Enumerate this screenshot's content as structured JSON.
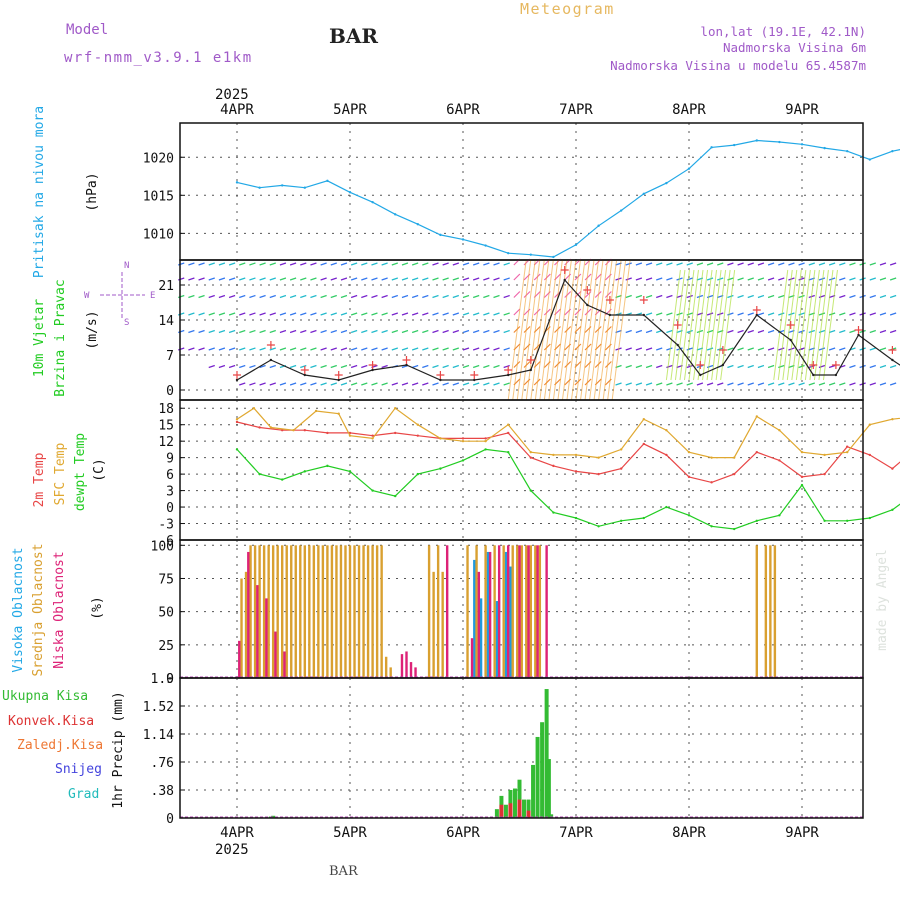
{
  "header": {
    "model_label": "Model",
    "model_name": "wrf-nmm_v3.9.1 e1km",
    "station": "BAR",
    "meteogram": "Meteogram",
    "lonlat": "lon,lat (19.1E, 42.1N)",
    "elevation": "Nadmorska Visina 6m",
    "model_elevation": "Nadmorska Visina u modelu 65.4587m"
  },
  "footer": {
    "station": "BAR",
    "credit": "made by Angel"
  },
  "time_axis": {
    "year": "2025",
    "days": [
      "4APR",
      "5APR",
      "6APR",
      "7APR",
      "8APR",
      "9APR"
    ]
  },
  "wind_legend": {
    "n": "N",
    "s": "S",
    "e": "E",
    "w": "W"
  },
  "colors": {
    "pressure": "#22a8e6",
    "temp2m": "#e84646",
    "sfc": "#e0a830",
    "dewpt": "#22cc22",
    "wind_speed": "#222222",
    "gust_marker": "#e84646",
    "high_cloud": "#2299dd",
    "mid_cloud": "#d9a030",
    "low_cloud": "#dd2277",
    "total_precip": "#33bb33",
    "conv_precip": "#dd3333",
    "frz_precip": "#ee7733",
    "snow": "#4444dd",
    "hail": "#22bbbb",
    "grid": "#555555"
  },
  "chart_data": [
    {
      "type": "line",
      "ylabel": [
        "Pritisak na nivou mora",
        "(hPa)"
      ],
      "yticks": [
        1010,
        1015,
        1020
      ],
      "ylim": [
        1006.5,
        1024.5
      ],
      "series": [
        {
          "name": "Pritisak na nivou mora",
          "x": [
            0,
            0.2,
            0.4,
            0.6,
            0.8,
            1.0,
            1.2,
            1.4,
            1.6,
            1.8,
            2.0,
            2.2,
            2.4,
            2.6,
            2.8,
            3.0,
            3.2,
            3.4,
            3.6,
            3.8,
            4.0,
            4.2,
            4.4,
            4.6,
            4.8,
            5.0,
            5.2,
            5.4,
            5.6,
            5.8,
            5.9,
            6.0
          ],
          "values": [
            1016.7,
            1016.0,
            1016.3,
            1016.0,
            1016.9,
            1015.4,
            1014.1,
            1012.5,
            1011.2,
            1009.8,
            1009.2,
            1008.4,
            1007.4,
            1007.2,
            1006.9,
            1008.5,
            1011.0,
            1013.0,
            1015.2,
            1016.6,
            1018.5,
            1021.3,
            1021.6,
            1022.2,
            1022.0,
            1021.7,
            1021.2,
            1020.8,
            1019.7,
            1020.8,
            1021.1,
            1021.0
          ]
        }
      ]
    },
    {
      "type": "line",
      "ylabel": [
        "10m Vjetar",
        "Brzina i Pravac",
        "(m/s)"
      ],
      "yticks": [
        0,
        7,
        14,
        21
      ],
      "ylim": [
        -2,
        26
      ],
      "series": [
        {
          "name": "Brzina",
          "x": [
            0,
            0.3,
            0.6,
            0.9,
            1.2,
            1.5,
            1.8,
            2.1,
            2.4,
            2.6,
            2.9,
            3.1,
            3.3,
            3.6,
            3.9,
            4.1,
            4.3,
            4.6,
            4.9,
            5.1,
            5.3,
            5.5,
            5.8,
            6.0
          ],
          "values": [
            2,
            6,
            3,
            2,
            4,
            5,
            2,
            2,
            3,
            4,
            22,
            17,
            15,
            15,
            9,
            3,
            5,
            15,
            10,
            3,
            3,
            11,
            6,
            3
          ],
          "gusts": [
            3,
            9,
            4,
            3,
            5,
            6,
            3,
            3,
            4,
            6,
            24,
            20,
            18,
            18,
            13,
            5,
            8,
            16,
            13,
            5,
            5,
            12,
            8,
            5
          ]
        }
      ]
    },
    {
      "type": "line",
      "ylabel": [
        "2m Temp",
        "SFC Temp",
        "dewpt Temp",
        "(C)"
      ],
      "yticks": [
        -6,
        -3,
        0,
        3,
        6,
        9,
        12,
        15,
        18
      ],
      "ylim": [
        -6,
        19.5
      ],
      "series": [
        {
          "name": "2m Temp",
          "x": [
            0,
            0.2,
            0.4,
            0.6,
            0.8,
            1.0,
            1.2,
            1.4,
            1.6,
            1.8,
            2.0,
            2.2,
            2.4,
            2.6,
            2.8,
            3.0,
            3.2,
            3.4,
            3.6,
            3.8,
            4.0,
            4.2,
            4.4,
            4.6,
            4.8,
            5.0,
            5.2,
            5.4,
            5.6,
            5.8,
            6.0
          ],
          "values": [
            15.5,
            14.5,
            14.0,
            14.0,
            13.5,
            13.5,
            13.0,
            13.5,
            13.0,
            12.5,
            12.5,
            12.5,
            13.5,
            9.0,
            7.5,
            6.5,
            6.0,
            7.0,
            11.5,
            9.5,
            5.5,
            4.5,
            6.0,
            10.0,
            8.5,
            5.5,
            6.0,
            11.0,
            9.5,
            7.0,
            10.5
          ]
        },
        {
          "name": "SFC Temp",
          "x": [
            0,
            0.15,
            0.3,
            0.5,
            0.7,
            0.9,
            1.0,
            1.2,
            1.4,
            1.6,
            1.8,
            2.0,
            2.2,
            2.4,
            2.6,
            2.8,
            3.0,
            3.2,
            3.4,
            3.6,
            3.8,
            4.0,
            4.2,
            4.4,
            4.6,
            4.8,
            5.0,
            5.2,
            5.4,
            5.6,
            5.8,
            6.0
          ],
          "values": [
            16,
            18,
            14.5,
            14,
            17.5,
            17,
            13,
            12.5,
            18,
            15,
            12.5,
            12,
            12,
            15,
            10,
            9.5,
            9.5,
            9,
            10.5,
            16,
            14,
            10,
            9,
            9,
            16.5,
            14,
            10,
            9.5,
            10,
            15,
            16,
            16.5
          ]
        },
        {
          "name": "dewpt Temp",
          "x": [
            0,
            0.2,
            0.4,
            0.6,
            0.8,
            1.0,
            1.2,
            1.4,
            1.6,
            1.8,
            2.0,
            2.2,
            2.4,
            2.6,
            2.8,
            3.0,
            3.2,
            3.4,
            3.6,
            3.8,
            4.0,
            4.2,
            4.4,
            4.6,
            4.8,
            5.0,
            5.2,
            5.4,
            5.6,
            5.8,
            6.0
          ],
          "values": [
            10.5,
            6.0,
            5.0,
            6.5,
            7.5,
            6.5,
            3.0,
            2.0,
            6.0,
            7.0,
            8.5,
            10.5,
            10.0,
            3.0,
            -1.0,
            -2.0,
            -3.5,
            -2.5,
            -2.0,
            0.0,
            -1.5,
            -3.5,
            -4.0,
            -2.5,
            -1.5,
            4.0,
            -2.5,
            -2.5,
            -2.0,
            -0.5,
            2.5
          ]
        }
      ]
    },
    {
      "type": "bar",
      "ylabel": [
        "Visoka Oblacnost",
        "Srednja Oblacnost",
        "Niska Oblacnost",
        "(%)"
      ],
      "yticks": [
        0,
        25,
        50,
        75,
        100
      ],
      "ylim": [
        0,
        104
      ],
      "series": [
        {
          "name": "Visoka Oblacnost",
          "x": [
            2.1,
            2.16,
            2.22,
            2.3,
            2.38,
            2.42
          ],
          "values": [
            89,
            60,
            95,
            58,
            95,
            84
          ]
        },
        {
          "name": "Srednja Oblacnost",
          "x": [
            0.04,
            0.08,
            0.12,
            0.16,
            0.2,
            0.24,
            0.28,
            0.32,
            0.36,
            0.4,
            0.44,
            0.48,
            0.52,
            0.56,
            0.6,
            0.64,
            0.68,
            0.72,
            0.76,
            0.8,
            0.84,
            0.88,
            0.92,
            0.96,
            1.0,
            1.04,
            1.08,
            1.12,
            1.16,
            1.2,
            1.24,
            1.28,
            1.32,
            1.36,
            1.7,
            1.74,
            1.78,
            1.82,
            2.04,
            2.12,
            2.2,
            2.28,
            2.36,
            2.44,
            2.48,
            2.52,
            2.56,
            2.6,
            2.64,
            2.68,
            4.6,
            4.68,
            4.72,
            4.76
          ],
          "values": [
            75,
            80,
            100,
            100,
            100,
            100,
            100,
            100,
            100,
            100,
            100,
            100,
            100,
            100,
            100,
            100,
            100,
            100,
            100,
            100,
            100,
            100,
            100,
            100,
            100,
            100,
            100,
            100,
            100,
            100,
            100,
            100,
            16,
            8,
            100,
            80,
            100,
            80,
            100,
            100,
            100,
            100,
            100,
            100,
            100,
            100,
            100,
            100,
            100,
            100,
            100,
            100,
            100,
            100
          ]
        },
        {
          "name": "Niska Oblacnost",
          "x": [
            0.02,
            0.1,
            0.18,
            0.26,
            0.34,
            0.42,
            1.46,
            1.5,
            1.54,
            1.58,
            1.86,
            2.08,
            2.14,
            2.24,
            2.32,
            2.4,
            2.5,
            2.58,
            2.66,
            2.74
          ],
          "values": [
            28,
            95,
            70,
            60,
            35,
            20,
            18,
            20,
            12,
            8,
            100,
            30,
            80,
            95,
            100,
            100,
            100,
            100,
            100,
            100
          ]
        }
      ]
    },
    {
      "type": "bar",
      "ylabel": [
        "Ukupna Kisa",
        "Konvek.Kisa",
        "Zaledj.Kisa",
        "Snijeg",
        "Grad",
        "1hr Precip (mm)"
      ],
      "yticks": [
        0,
        0.38,
        0.76,
        1.14,
        1.52,
        1.9
      ],
      "ylim": [
        0,
        1.9
      ],
      "series": [
        {
          "name": "Ukupna Kisa",
          "x": [
            0.3,
            0.32,
            2.3,
            2.34,
            2.38,
            2.42,
            2.46,
            2.5,
            2.54,
            2.58,
            2.62,
            2.66,
            2.7,
            2.74,
            2.76,
            2.78
          ],
          "values": [
            0.02,
            0.03,
            0.12,
            0.3,
            0.18,
            0.38,
            0.4,
            0.52,
            0.25,
            0.25,
            0.72,
            1.1,
            1.3,
            1.75,
            0.8,
            0.05
          ]
        },
        {
          "name": "Konvek.Kisa",
          "x": [
            2.34,
            2.42,
            2.5,
            2.58
          ],
          "values": [
            0.18,
            0.2,
            0.25,
            0.1
          ]
        }
      ]
    }
  ]
}
